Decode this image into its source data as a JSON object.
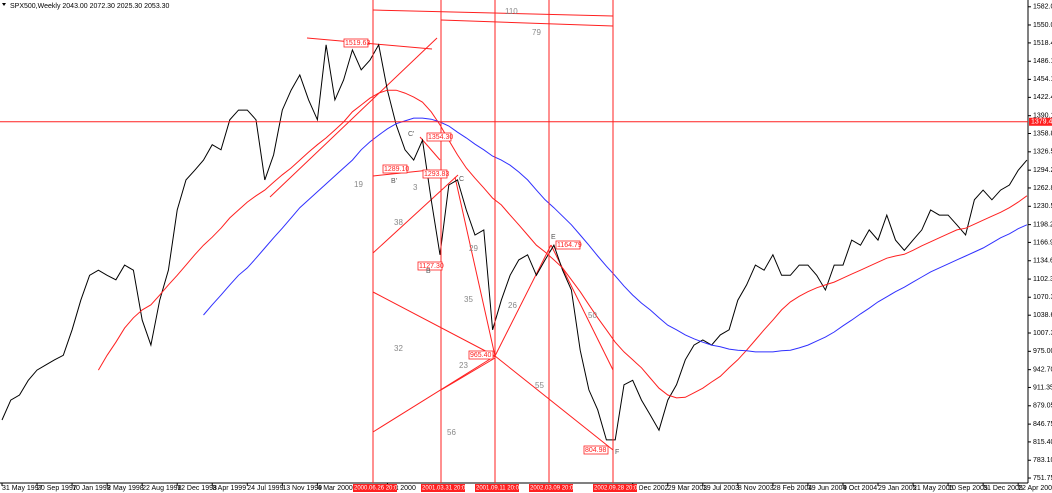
{
  "chart_data": {
    "type": "line",
    "title": "SPX500,Weekly  2043.00 2072.30 2025.30 2053.30",
    "categories": [
      "31 May 1997",
      null,
      null,
      null,
      "20 Sep 1997",
      null,
      null,
      null,
      "10 Jan 1998",
      null,
      null,
      null,
      "2 May 1998",
      null,
      null,
      null,
      "22 Aug 1998",
      null,
      null,
      null,
      "12 Dec 1998",
      null,
      null,
      null,
      "3 Apr 1999",
      null,
      null,
      null,
      "24 Jul 1999",
      null,
      null,
      null,
      "13 Nov 1999",
      null,
      null,
      null,
      "4 Mar 2000",
      null,
      null,
      null,
      null,
      null,
      null,
      null,
      "Oct 2000",
      null,
      null,
      null,
      null,
      null,
      null,
      null,
      null,
      null,
      null,
      null,
      null,
      null,
      null,
      null,
      null,
      null,
      null,
      null,
      null,
      null,
      null,
      null,
      null,
      null,
      null,
      null,
      "7 Dec 2002",
      null,
      null,
      null,
      "29 Mar 2003",
      null,
      null,
      null,
      "19 Jul 2003",
      null,
      null,
      null,
      "8 Nov 2003",
      null,
      null,
      null,
      "28 Feb 2004",
      null,
      null,
      null,
      "19 Jun 2004",
      null,
      null,
      null,
      "9 Oct 2004",
      null,
      null,
      null,
      "29 Jan 2005",
      null,
      null,
      null,
      "21 May 2005",
      null,
      null,
      null,
      "10 Sep 2005",
      null,
      null,
      null,
      "31 Dec 2005",
      null,
      null,
      null,
      "22 Apr 2006",
      null
    ],
    "series": [
      {
        "name": "SPX500",
        "color": "#000000",
        "values": [
          854,
          889,
          898,
          924,
          942,
          951,
          960,
          968,
          1013,
          1065,
          1109,
          1118,
          1109,
          1101,
          1127,
          1118,
          1030,
          986,
          1065,
          1118,
          1224,
          1277,
          1294,
          1312,
          1339,
          1330,
          1383,
          1400,
          1400,
          1383,
          1277,
          1321,
          1400,
          1435,
          1462,
          1418,
          1383,
          1515,
          1418,
          1453,
          1506,
          1471,
          1488,
          1515,
          1435,
          1374,
          1330,
          1312,
          1347,
          1242,
          1145,
          1268,
          1277,
          1224,
          1180,
          1189,
          1013,
          1065,
          1109,
          1136,
          1145,
          1109,
          1136,
          1162,
          1118,
          1083,
          977,
          907,
          872,
          819,
          819,
          916,
          924,
          889,
          863,
          836,
          889,
          916,
          960,
          986,
          995,
          986,
          1004,
          1013,
          1065,
          1092,
          1127,
          1118,
          1145,
          1109,
          1109,
          1127,
          1127,
          1109,
          1083,
          1127,
          1127,
          1171,
          1162,
          1189,
          1171,
          1215,
          1171,
          1153,
          1171,
          1189,
          1224,
          1215,
          1215,
          1198,
          1180,
          1242,
          1259,
          1242,
          1259,
          1268,
          1294,
          1312
        ]
      },
      {
        "color": "#ff2020",
        "values": [
          null,
          null,
          null,
          null,
          null,
          null,
          null,
          null,
          null,
          null,
          null,
          942,
          968,
          991,
          1016,
          1034,
          1048,
          1057,
          1074,
          1092,
          1109,
          1127,
          1145,
          1162,
          1176,
          1192,
          1210,
          1224,
          1238,
          1249,
          1259,
          1273,
          1286,
          1298,
          1312,
          1326,
          1339,
          1351,
          1365,
          1379,
          1397,
          1409,
          1421,
          1430,
          1435,
          1435,
          1430,
          1423,
          1414,
          1397,
          1374,
          1347,
          1321,
          1298,
          1280,
          1263,
          1245,
          1233,
          1215,
          1198,
          1180,
          1162,
          1150,
          1136,
          1122,
          1101,
          1080,
          1057,
          1034,
          1013,
          991,
          974,
          960,
          946,
          928,
          910,
          898,
          893,
          894,
          902,
          910,
          921,
          931,
          946,
          960,
          977,
          995,
          1013,
          1030,
          1048,
          1062,
          1072,
          1080,
          1087,
          1092,
          1097,
          1104,
          1111,
          1118,
          1125,
          1132,
          1139,
          1143,
          1146,
          1153,
          1161,
          1168,
          1175,
          1182,
          1189,
          1192,
          1199,
          1206,
          1213,
          1220,
          1228,
          1238,
          1249
        ]
      },
      {
        "color": "#3030ff",
        "values": [
          null,
          null,
          null,
          null,
          null,
          null,
          null,
          null,
          null,
          null,
          null,
          null,
          null,
          null,
          null,
          null,
          null,
          null,
          null,
          null,
          null,
          null,
          null,
          1039,
          1057,
          1074,
          1092,
          1109,
          1122,
          1139,
          1157,
          1175,
          1192,
          1210,
          1228,
          1242,
          1256,
          1270,
          1284,
          1298,
          1312,
          1330,
          1344,
          1356,
          1367,
          1376,
          1381,
          1386,
          1386,
          1384,
          1379,
          1372,
          1361,
          1351,
          1340,
          1330,
          1319,
          1312,
          1303,
          1291,
          1277,
          1259,
          1242,
          1228,
          1213,
          1198,
          1180,
          1162,
          1143,
          1125,
          1108,
          1090,
          1074,
          1060,
          1048,
          1034,
          1021,
          1013,
          1004,
          997,
          991,
          986,
          983,
          979,
          977,
          976,
          974,
          974,
          974,
          976,
          977,
          981,
          986,
          993,
          1000,
          1009,
          1020,
          1030,
          1041,
          1051,
          1062,
          1071,
          1080,
          1088,
          1097,
          1106,
          1115,
          1122,
          1129,
          1136,
          1143,
          1150,
          1157,
          1166,
          1175,
          1182,
          1191,
          1198
        ]
      }
    ],
    "ylim": [
      743,
      1594
    ],
    "yticks": [
      1582.05,
      {
        "value": 1550,
        "label": "1550.00"
      },
      {
        "value": 1518.4,
        "label": "1518.40"
      },
      {
        "value": 1486.1,
        "label": "1486.10"
      },
      1454.15,
      1422.45,
      1390.15,
      {
        "value": 1358.8,
        "label": "1358.80"
      },
      {
        "value": 1326.5,
        "label": "1326.50"
      },
      {
        "value": 1294.2,
        "label": "1294.20"
      },
      1262.85,
      1230.55,
      1198.25,
      {
        "value": 1166.9,
        "label": "1166.90"
      },
      {
        "value": 1134.6,
        "label": "1134.60"
      },
      {
        "value": 1102.3,
        "label": "1102.30"
      },
      {
        "value": 1070.3,
        "label": "1070.30"
      },
      1038.65,
      {
        "value": 1007.3,
        "label": "1007.30"
      },
      {
        "value": 975,
        "label": "975.00"
      },
      {
        "value": 942.7,
        "label": "942.70"
      },
      911.35,
      879.05,
      846.75,
      {
        "value": 815.4,
        "label": "815.40"
      },
      {
        "value": 783.1,
        "label": "783.10"
      },
      751.75
    ],
    "hline": {
      "value": 1379.44,
      "label": "1379.44"
    },
    "vlines": [
      "2000.06.26 20:00",
      "2001.03.31 20:00",
      "2001.09.11 20:00",
      "2002.03.09 20:00",
      "2002.09.28 20:00"
    ],
    "annotations": [
      "1519.63",
      "1354.30",
      "1289.10",
      "1293.83",
      "1127.30",
      "965.40",
      "1164.79",
      "804.98",
      "C'",
      "B'",
      "C",
      "B",
      "E",
      "F",
      "110",
      "79",
      "19",
      "3",
      "38",
      "29",
      "35",
      "26",
      "50",
      "32",
      "23",
      "55",
      "56"
    ]
  }
}
